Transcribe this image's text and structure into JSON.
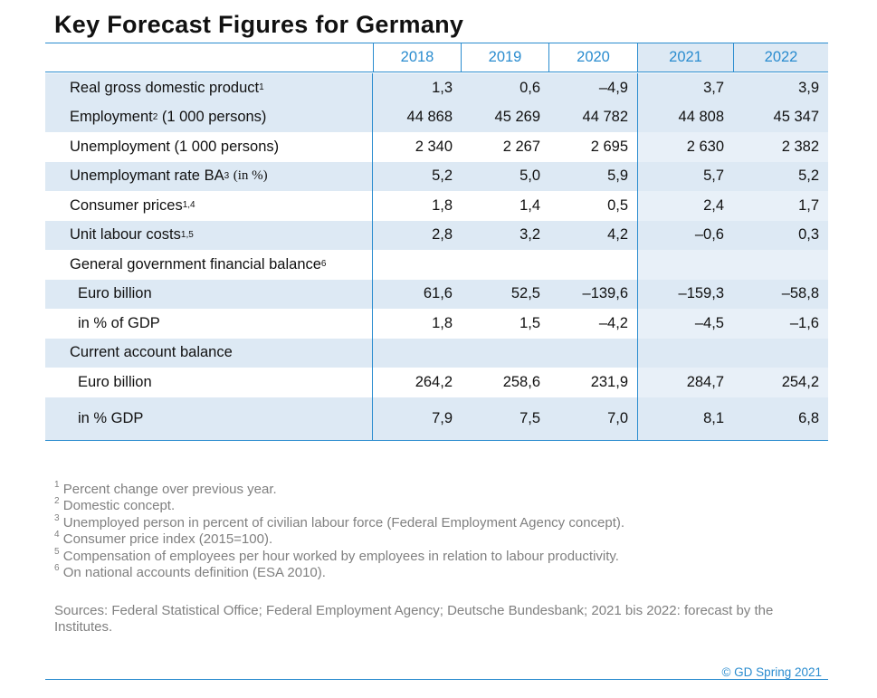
{
  "header": {
    "title": "Key Forecast Figures for Germany"
  },
  "table": {
    "columns": [
      "2018",
      "2019",
      "2020",
      "2021",
      "2022"
    ],
    "rows": [
      {
        "label": "Real gross domestic product",
        "sup": "1",
        "values": [
          "1,3",
          "0,6",
          "–4,9",
          "3,7",
          "3,9"
        ]
      },
      {
        "label": "Employment",
        "sup": "2",
        "suffix": "(1 000 persons)",
        "values": [
          "44 868",
          "45 269",
          "44 782",
          "44 808",
          "45 347"
        ]
      },
      {
        "label": "Unemployment (1 000 persons)",
        "values": [
          "2 340",
          "2 267",
          "2 695",
          "2 630",
          "2 382"
        ]
      },
      {
        "label": "Unemploymant rate BA",
        "sup": "3",
        "suffix_serif": "(in %)",
        "values": [
          "5,2",
          "5,0",
          "5,9",
          "5,7",
          "5,2"
        ]
      },
      {
        "label": "Consumer prices",
        "sup": "1,4",
        "values": [
          "1,8",
          "1,4",
          "0,5",
          "2,4",
          "1,7"
        ]
      },
      {
        "label": "Unit labour costs",
        "sup": "1,5",
        "values": [
          "2,8",
          "3,2",
          "4,2",
          "–0,6",
          "0,3"
        ]
      },
      {
        "label": "General government financial balance",
        "sup": "6"
      },
      {
        "label": "Euro billion",
        "indent": true,
        "values": [
          "61,6",
          "52,5",
          "–139,6",
          "–159,3",
          "–58,8"
        ]
      },
      {
        "label": "in % of GDP",
        "indent": true,
        "values": [
          "1,8",
          "1,5",
          "–4,2",
          "–4,5",
          "–1,6"
        ]
      },
      {
        "label": "Current account balance"
      },
      {
        "label": "Euro billion",
        "indent": true,
        "values": [
          "264,2",
          "258,6",
          "231,9",
          "284,7",
          "254,2"
        ]
      },
      {
        "label": "in % GDP",
        "indent": true,
        "values": [
          "7,9",
          "7,5",
          "7,0",
          "8,1",
          "6,8"
        ]
      }
    ]
  },
  "footnotes": [
    {
      "mark": "1",
      "text": "Percent change over previous year."
    },
    {
      "mark": "2",
      "text": "Domestic concept."
    },
    {
      "mark": "3",
      "text": "Unemployed person in percent of civilian labour force (Federal Employment Agency concept)."
    },
    {
      "mark": "4",
      "text": "Consumer price index (2015=100)."
    },
    {
      "mark": "5",
      "text": "Compensation of employees per hour worked by employees in relation to labour productivity."
    },
    {
      "mark": "6",
      "text": "On national accounts definition (ESA 2010)."
    }
  ],
  "sources": "Sources: Federal Statistical Office; Federal Employment Agency; Deutsche Bundesbank; 2021 bis 2022: forecast by the Institutes.",
  "copyright": "© GD Spring 2021"
}
